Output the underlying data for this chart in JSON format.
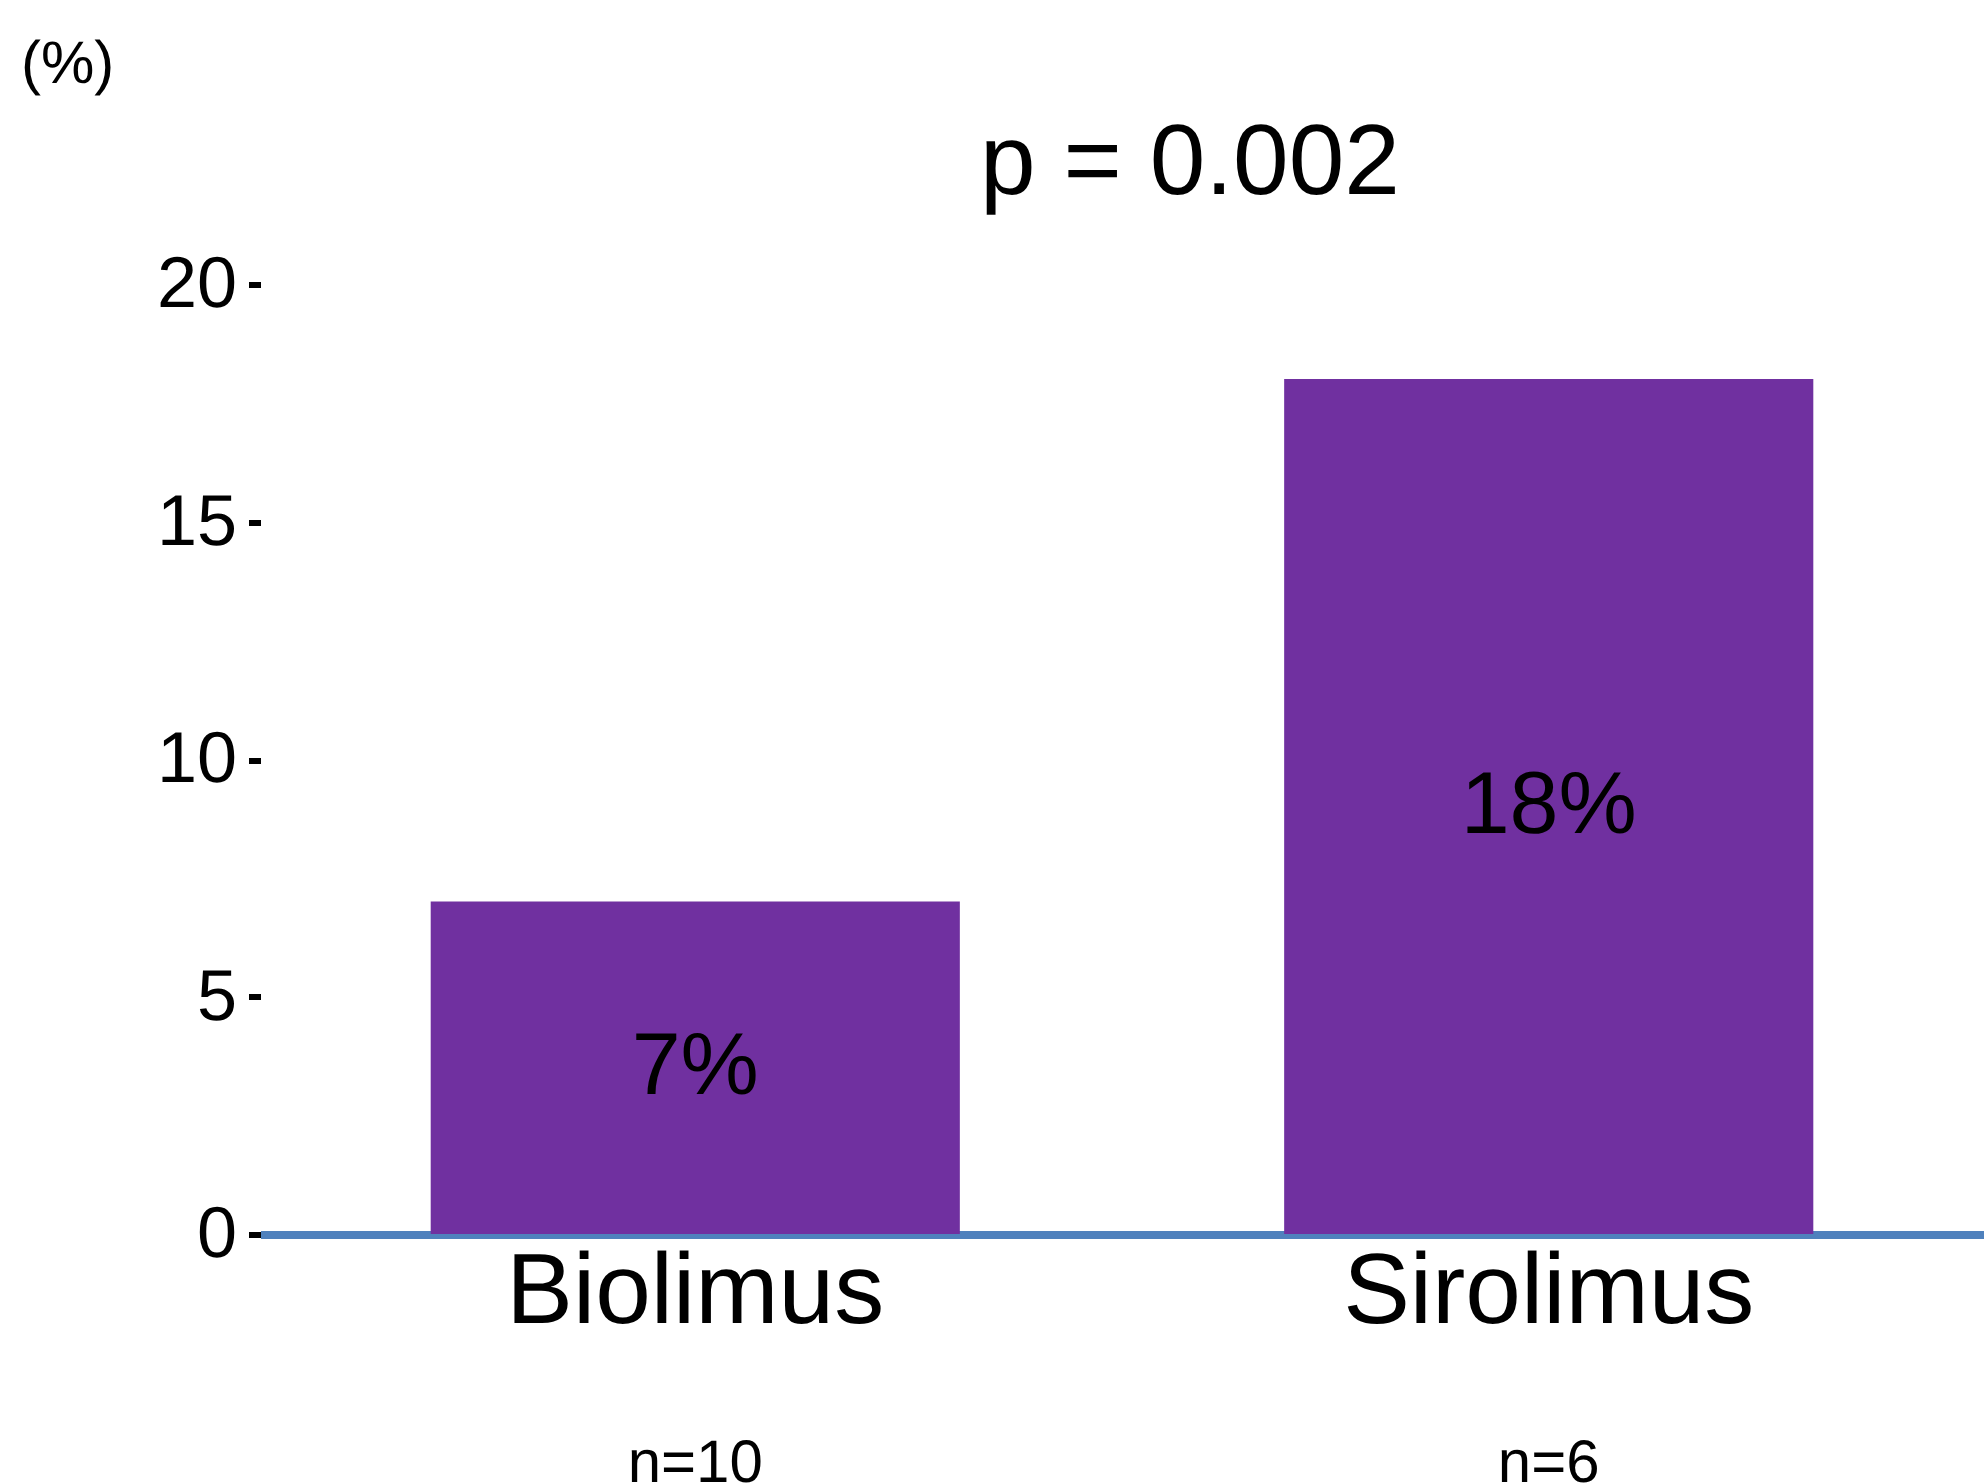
{
  "chart_data": {
    "type": "bar",
    "ylabel": "(%)",
    "categories": [
      "Biolimus",
      "Sirolimus"
    ],
    "values": [
      7,
      18
    ],
    "value_labels": [
      "7%",
      "18%"
    ],
    "color": "#7030a0",
    "ylim": [
      0,
      20
    ],
    "yticks": [
      0,
      5,
      10,
      15,
      20
    ],
    "annotations": [
      "p = 0.002",
      "n=10",
      "n=6"
    ]
  }
}
